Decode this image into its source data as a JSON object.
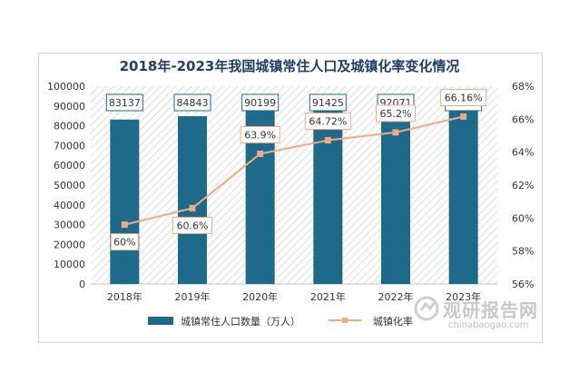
{
  "page": {
    "title": "2018年-2023年我国城镇常住人口及城镇化率变化情况"
  },
  "watermark": {
    "main": "观研报告网",
    "sub": "chinabaogao.com"
  },
  "colors": {
    "bar": "#1d6a8a",
    "line": "#f0aa84",
    "label_border_bar": "#1d6a8a",
    "label_border_line": "#f0aa84",
    "title": "#1f3f66"
  },
  "chart_data": {
    "type": "bar",
    "title": "2018年-2023年我国城镇常住人口及城镇化率变化情况",
    "categories": [
      "2018年",
      "2019年",
      "2020年",
      "2021年",
      "2022年",
      "2023年"
    ],
    "series": [
      {
        "name": "城镇常住人口数量（万人）",
        "type": "bar",
        "axis": "left",
        "values": [
          83137,
          84843,
          90199,
          91425,
          92071,
          93267
        ],
        "labels": [
          "83137",
          "84843",
          "90199",
          "91425",
          "92071",
          "93267"
        ]
      },
      {
        "name": "城镇化率",
        "type": "line",
        "axis": "right",
        "values": [
          59.6,
          60.6,
          63.9,
          64.72,
          65.2,
          66.16
        ],
        "labels": [
          "60%",
          "60.6%",
          "63.9%",
          "64.72%",
          "65.2%",
          "66.16%"
        ]
      }
    ],
    "y_left": {
      "min": 0,
      "max": 100000,
      "ticks": [
        "0",
        "10000",
        "20000",
        "30000",
        "40000",
        "50000",
        "60000",
        "70000",
        "80000",
        "90000",
        "100000"
      ]
    },
    "y_right": {
      "min": 56,
      "max": 68,
      "ticks": [
        "56%",
        "58%",
        "60%",
        "62%",
        "64%",
        "66%",
        "68%"
      ]
    },
    "legend_position": "bottom",
    "grid": false
  }
}
